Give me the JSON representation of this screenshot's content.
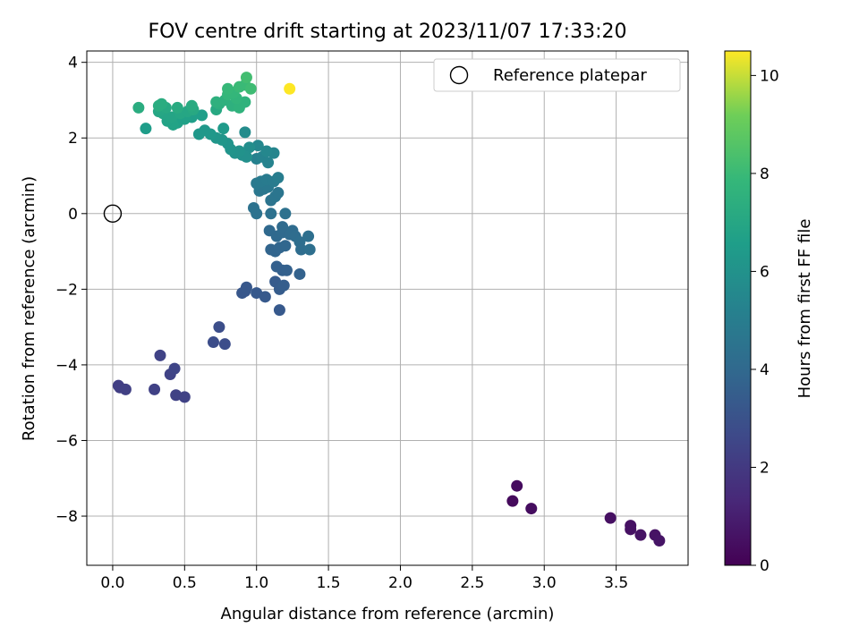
{
  "chart_data": {
    "type": "scatter",
    "title": "FOV centre drift starting at 2023/11/07 17:33:20",
    "xlabel": "Angular distance from reference (arcmin)",
    "ylabel": "Rotation from reference (arcmin)",
    "xlim": [
      -0.18,
      4.0
    ],
    "ylim": [
      -9.3,
      4.3
    ],
    "xticks": [
      0.0,
      0.5,
      1.0,
      1.5,
      2.0,
      2.5,
      3.0,
      3.5
    ],
    "yticks": [
      -8,
      -6,
      -4,
      -2,
      0,
      2,
      4
    ],
    "xtick_labels": [
      "0.0",
      "0.5",
      "1.0",
      "1.5",
      "2.0",
      "2.5",
      "3.0",
      "3.5"
    ],
    "ytick_labels": [
      "−8",
      "−6",
      "−4",
      "−2",
      "0",
      "2",
      "4"
    ],
    "grid": true,
    "colormap": "viridis",
    "colorbar": {
      "label": "Hours from first FF file",
      "range": [
        0,
        10.5
      ],
      "ticks": [
        0,
        2,
        4,
        6,
        8,
        10
      ],
      "tick_labels": [
        "0",
        "2",
        "4",
        "6",
        "8",
        "10"
      ]
    },
    "legend": {
      "placement": "top-right",
      "entries": [
        {
          "label": "Reference platepar",
          "marker": "open-circle"
        }
      ]
    },
    "reference_point": {
      "x": 0.0,
      "y": 0.0
    },
    "points": [
      {
        "x": 2.78,
        "y": -7.6,
        "c": 0.3
      },
      {
        "x": 2.81,
        "y": -7.2,
        "c": 0.35
      },
      {
        "x": 2.91,
        "y": -7.8,
        "c": 0.4
      },
      {
        "x": 3.46,
        "y": -8.05,
        "c": 0.5
      },
      {
        "x": 3.6,
        "y": -8.25,
        "c": 0.55
      },
      {
        "x": 3.6,
        "y": -8.35,
        "c": 0.55
      },
      {
        "x": 3.67,
        "y": -8.5,
        "c": 0.6
      },
      {
        "x": 3.77,
        "y": -8.5,
        "c": 0.6
      },
      {
        "x": 3.8,
        "y": -8.65,
        "c": 0.65
      },
      {
        "x": 0.04,
        "y": -4.55,
        "c": 2.2
      },
      {
        "x": 0.05,
        "y": -4.6,
        "c": 2.2
      },
      {
        "x": 0.09,
        "y": -4.65,
        "c": 2.25
      },
      {
        "x": 0.29,
        "y": -4.65,
        "c": 2.3
      },
      {
        "x": 0.33,
        "y": -3.75,
        "c": 2.4
      },
      {
        "x": 0.4,
        "y": -4.25,
        "c": 2.4
      },
      {
        "x": 0.43,
        "y": -4.1,
        "c": 2.45
      },
      {
        "x": 0.44,
        "y": -4.8,
        "c": 2.35
      },
      {
        "x": 0.5,
        "y": -4.85,
        "c": 2.35
      },
      {
        "x": 0.7,
        "y": -3.4,
        "c": 2.8
      },
      {
        "x": 0.74,
        "y": -3.0,
        "c": 2.85
      },
      {
        "x": 0.78,
        "y": -3.45,
        "c": 2.8
      },
      {
        "x": 0.9,
        "y": -2.1,
        "c": 3.2
      },
      {
        "x": 0.92,
        "y": -2.05,
        "c": 3.2
      },
      {
        "x": 0.93,
        "y": -1.95,
        "c": 3.25
      },
      {
        "x": 1.0,
        "y": -2.1,
        "c": 3.3
      },
      {
        "x": 1.06,
        "y": -2.2,
        "c": 3.3
      },
      {
        "x": 1.13,
        "y": -1.8,
        "c": 3.4
      },
      {
        "x": 1.16,
        "y": -2.55,
        "c": 3.3
      },
      {
        "x": 1.16,
        "y": -2.0,
        "c": 3.45
      },
      {
        "x": 1.19,
        "y": -1.9,
        "c": 3.5
      },
      {
        "x": 1.18,
        "y": -1.5,
        "c": 3.6
      },
      {
        "x": 1.21,
        "y": -1.5,
        "c": 3.65
      },
      {
        "x": 1.14,
        "y": -1.4,
        "c": 3.6
      },
      {
        "x": 1.3,
        "y": -1.6,
        "c": 3.7
      },
      {
        "x": 1.1,
        "y": -0.95,
        "c": 3.8
      },
      {
        "x": 1.13,
        "y": -1.0,
        "c": 3.8
      },
      {
        "x": 1.16,
        "y": -0.9,
        "c": 3.85
      },
      {
        "x": 1.2,
        "y": -0.85,
        "c": 3.9
      },
      {
        "x": 1.09,
        "y": -0.45,
        "c": 4.0
      },
      {
        "x": 1.14,
        "y": -0.6,
        "c": 4.0
      },
      {
        "x": 1.18,
        "y": -0.5,
        "c": 4.05
      },
      {
        "x": 1.18,
        "y": -0.35,
        "c": 4.1
      },
      {
        "x": 1.23,
        "y": -0.55,
        "c": 4.1
      },
      {
        "x": 1.25,
        "y": -0.45,
        "c": 4.15
      },
      {
        "x": 1.27,
        "y": -0.6,
        "c": 4.2
      },
      {
        "x": 1.3,
        "y": -0.75,
        "c": 4.25
      },
      {
        "x": 1.31,
        "y": -0.95,
        "c": 4.2
      },
      {
        "x": 1.37,
        "y": -0.95,
        "c": 4.3
      },
      {
        "x": 1.36,
        "y": -0.6,
        "c": 4.3
      },
      {
        "x": 1.2,
        "y": 0.0,
        "c": 4.4
      },
      {
        "x": 1.1,
        "y": 0.0,
        "c": 4.4
      },
      {
        "x": 0.98,
        "y": 0.15,
        "c": 4.45
      },
      {
        "x": 1.0,
        "y": 0.0,
        "c": 4.45
      },
      {
        "x": 1.1,
        "y": 0.35,
        "c": 4.55
      },
      {
        "x": 1.13,
        "y": 0.45,
        "c": 4.6
      },
      {
        "x": 1.15,
        "y": 0.55,
        "c": 4.6
      },
      {
        "x": 1.02,
        "y": 0.6,
        "c": 4.7
      },
      {
        "x": 1.05,
        "y": 0.65,
        "c": 4.7
      },
      {
        "x": 1.08,
        "y": 0.7,
        "c": 4.75
      },
      {
        "x": 1.0,
        "y": 0.8,
        "c": 4.8
      },
      {
        "x": 1.03,
        "y": 0.85,
        "c": 4.85
      },
      {
        "x": 1.07,
        "y": 0.9,
        "c": 4.9
      },
      {
        "x": 1.12,
        "y": 0.85,
        "c": 4.9
      },
      {
        "x": 1.15,
        "y": 0.95,
        "c": 5.0
      },
      {
        "x": 1.0,
        "y": 1.45,
        "c": 5.2
      },
      {
        "x": 1.04,
        "y": 1.5,
        "c": 5.3
      },
      {
        "x": 1.08,
        "y": 1.35,
        "c": 5.3
      },
      {
        "x": 1.12,
        "y": 1.6,
        "c": 5.4
      },
      {
        "x": 1.01,
        "y": 1.8,
        "c": 5.5
      },
      {
        "x": 1.07,
        "y": 1.65,
        "c": 5.5
      },
      {
        "x": 0.92,
        "y": 2.15,
        "c": 5.7
      },
      {
        "x": 0.95,
        "y": 1.75,
        "c": 5.8
      },
      {
        "x": 0.9,
        "y": 1.55,
        "c": 5.9
      },
      {
        "x": 0.93,
        "y": 1.5,
        "c": 5.9
      },
      {
        "x": 0.85,
        "y": 1.6,
        "c": 6.0
      },
      {
        "x": 0.88,
        "y": 1.65,
        "c": 6.0
      },
      {
        "x": 0.82,
        "y": 1.7,
        "c": 6.1
      },
      {
        "x": 0.8,
        "y": 1.85,
        "c": 6.1
      },
      {
        "x": 0.76,
        "y": 1.95,
        "c": 6.2
      },
      {
        "x": 0.72,
        "y": 2.0,
        "c": 6.2
      },
      {
        "x": 0.68,
        "y": 2.1,
        "c": 6.3
      },
      {
        "x": 0.6,
        "y": 2.1,
        "c": 6.3
      },
      {
        "x": 0.64,
        "y": 2.2,
        "c": 6.3
      },
      {
        "x": 0.77,
        "y": 2.25,
        "c": 6.4
      },
      {
        "x": 0.23,
        "y": 2.25,
        "c": 6.5
      },
      {
        "x": 0.62,
        "y": 2.6,
        "c": 6.6
      },
      {
        "x": 0.55,
        "y": 2.55,
        "c": 6.6
      },
      {
        "x": 0.5,
        "y": 2.5,
        "c": 6.7
      },
      {
        "x": 0.45,
        "y": 2.4,
        "c": 6.7
      },
      {
        "x": 0.42,
        "y": 2.35,
        "c": 6.8
      },
      {
        "x": 0.38,
        "y": 2.45,
        "c": 6.8
      },
      {
        "x": 0.41,
        "y": 2.55,
        "c": 6.9
      },
      {
        "x": 0.35,
        "y": 2.65,
        "c": 6.9
      },
      {
        "x": 0.32,
        "y": 2.7,
        "c": 7.0
      },
      {
        "x": 0.47,
        "y": 2.65,
        "c": 7.0
      },
      {
        "x": 0.52,
        "y": 2.7,
        "c": 7.0
      },
      {
        "x": 0.56,
        "y": 2.75,
        "c": 7.1
      },
      {
        "x": 0.72,
        "y": 2.75,
        "c": 7.1
      },
      {
        "x": 0.37,
        "y": 2.8,
        "c": 7.1
      },
      {
        "x": 0.45,
        "y": 2.8,
        "c": 7.2
      },
      {
        "x": 0.55,
        "y": 2.85,
        "c": 7.2
      },
      {
        "x": 0.32,
        "y": 2.85,
        "c": 7.3
      },
      {
        "x": 0.34,
        "y": 2.9,
        "c": 7.3
      },
      {
        "x": 0.18,
        "y": 2.8,
        "c": 7.3
      },
      {
        "x": 0.74,
        "y": 2.9,
        "c": 7.4
      },
      {
        "x": 0.72,
        "y": 2.95,
        "c": 7.5
      },
      {
        "x": 0.78,
        "y": 3.0,
        "c": 7.5
      },
      {
        "x": 0.83,
        "y": 2.85,
        "c": 7.5
      },
      {
        "x": 0.88,
        "y": 2.8,
        "c": 7.6
      },
      {
        "x": 0.92,
        "y": 2.95,
        "c": 7.6
      },
      {
        "x": 0.86,
        "y": 3.05,
        "c": 7.7
      },
      {
        "x": 0.8,
        "y": 3.15,
        "c": 7.8
      },
      {
        "x": 0.84,
        "y": 3.2,
        "c": 7.8
      },
      {
        "x": 0.8,
        "y": 3.3,
        "c": 7.9
      },
      {
        "x": 0.88,
        "y": 3.35,
        "c": 8.0
      },
      {
        "x": 0.92,
        "y": 3.4,
        "c": 8.0
      },
      {
        "x": 0.96,
        "y": 3.3,
        "c": 8.1
      },
      {
        "x": 0.93,
        "y": 3.6,
        "c": 8.2
      },
      {
        "x": 1.23,
        "y": 3.3,
        "c": 10.5
      }
    ]
  }
}
